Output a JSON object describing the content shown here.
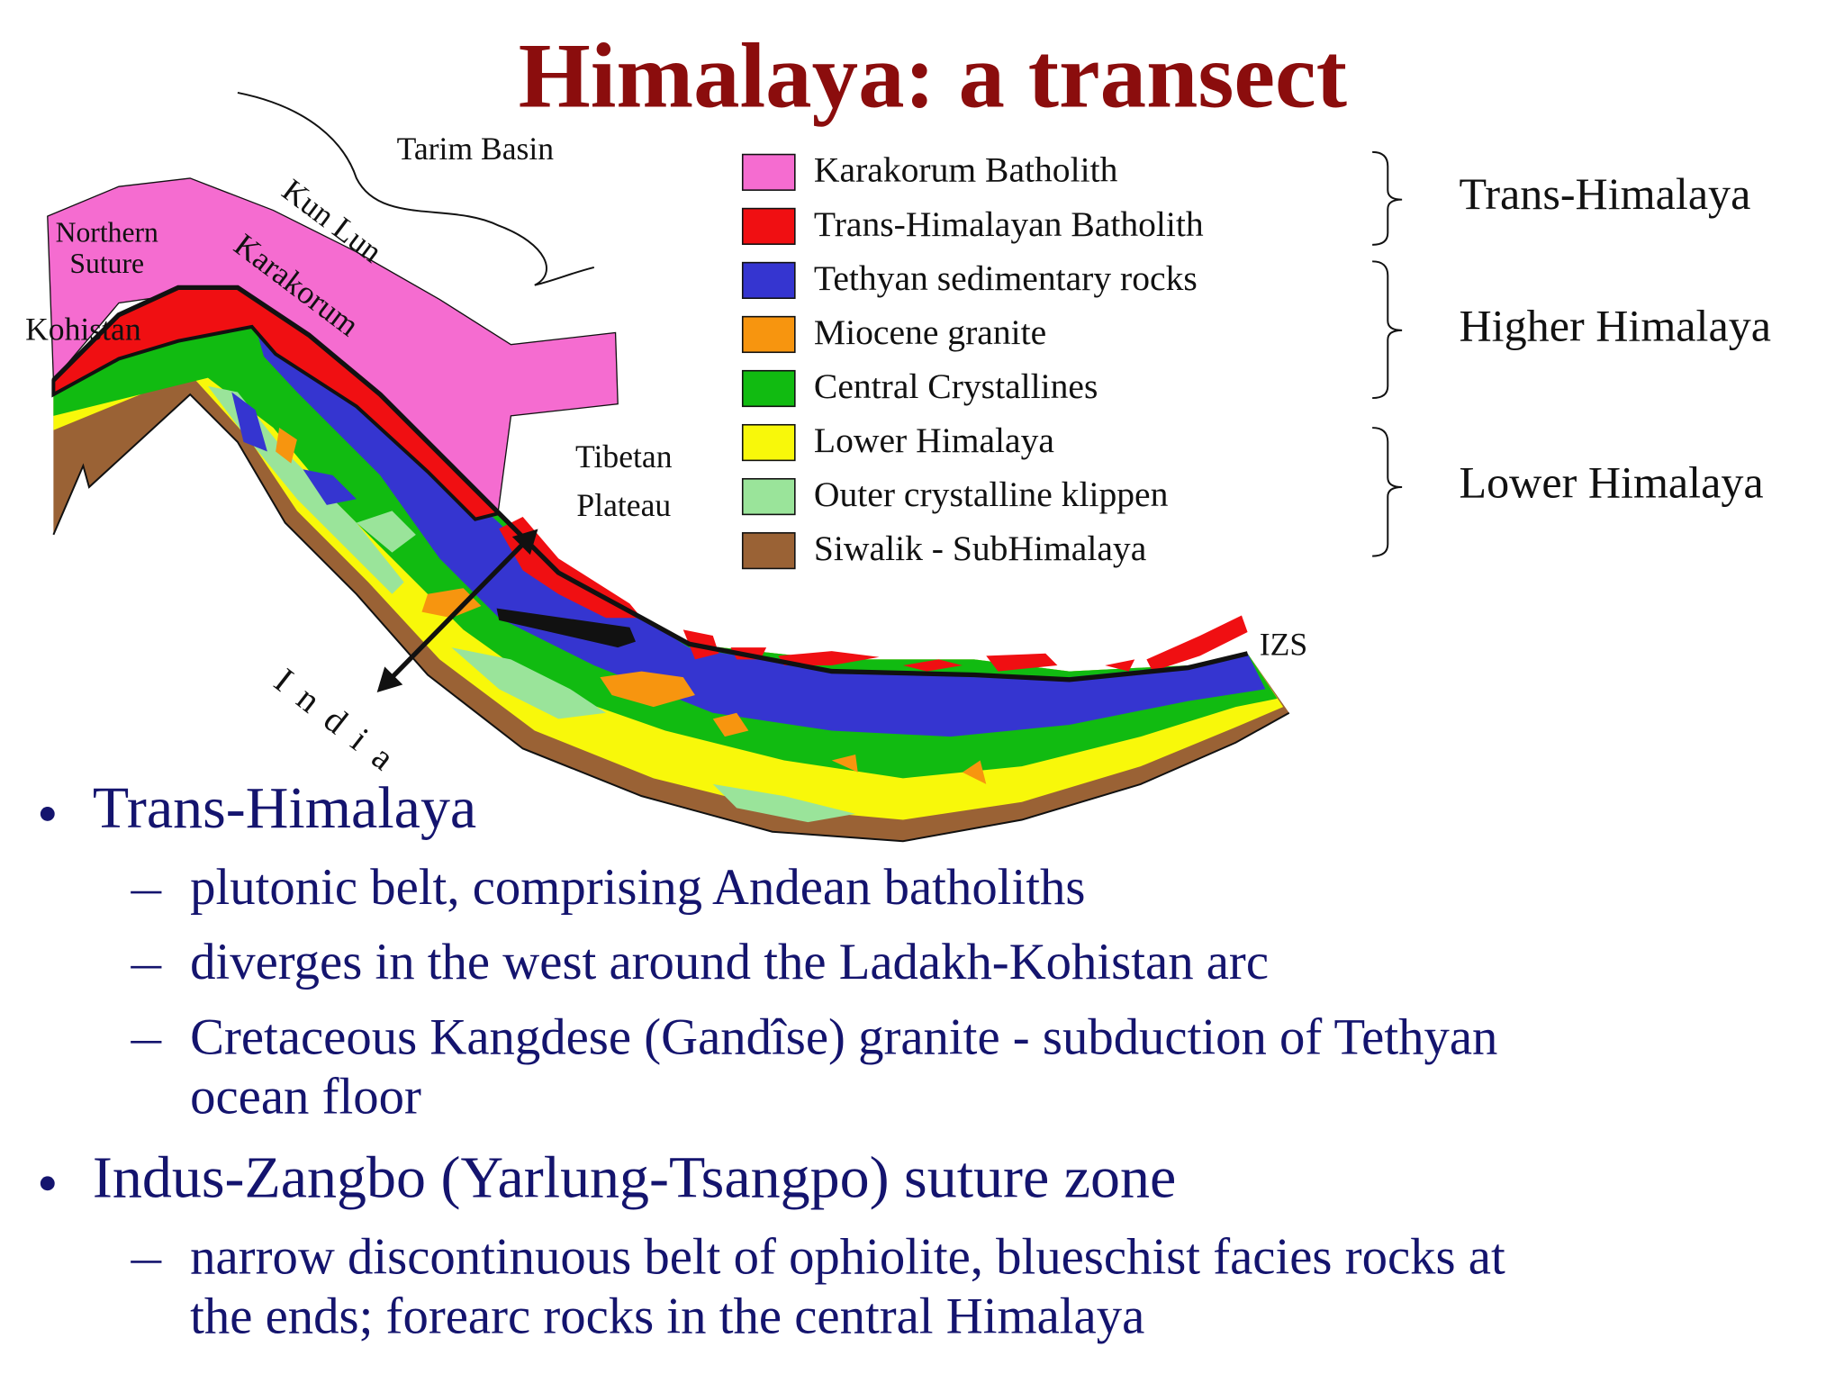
{
  "title": "Himalaya: a transect",
  "map": {
    "labels": {
      "tarim_basin": "Tarim Basin",
      "kun_lun": "Kun Lun",
      "karakorum": "Karakorum",
      "northern_suture": [
        "Northern",
        "Suture"
      ],
      "kohistan": "Kohistan",
      "tibetan_plateau": [
        "Tibetan",
        "Plateau"
      ],
      "india": "India",
      "izs": "IZS"
    }
  },
  "legend": {
    "items": [
      {
        "label": "Karakorum Batholith",
        "color": "#f56cd0"
      },
      {
        "label": "Trans-Himalayan Batholith",
        "color": "#f00f12"
      },
      {
        "label": "Tethyan sedimentary rocks",
        "color": "#3535d0"
      },
      {
        "label": "Miocene granite",
        "color": "#f7950f"
      },
      {
        "label": "Central Crystallines",
        "color": "#11bb11"
      },
      {
        "label": "Lower Himalaya",
        "color": "#f8f80a"
      },
      {
        "label": "Outer crystalline klippen",
        "color": "#9ae49a"
      },
      {
        "label": "Siwalik - SubHimalaya",
        "color": "#9a6235"
      }
    ],
    "groups": [
      "Trans-Himalaya",
      "Higher Himalaya",
      "Lower Himalaya"
    ]
  },
  "bullets": [
    {
      "text": "Trans-Himalaya",
      "sub": [
        [
          "plutonic belt, comprising Andean batholiths"
        ],
        [
          "diverges in the west around the Ladakh-Kohistan arc"
        ],
        [
          "Cretaceous Kangdese (Gandîse) granite - subduction of Tethyan",
          "ocean floor"
        ]
      ]
    },
    {
      "text": "Indus-Zangbo (Yarlung-Tsangpo) suture zone",
      "sub": [
        [
          "narrow discontinuous belt of ophiolite, blueschist facies rocks at",
          "the ends; forearc rocks in the central Himalaya"
        ]
      ]
    }
  ]
}
